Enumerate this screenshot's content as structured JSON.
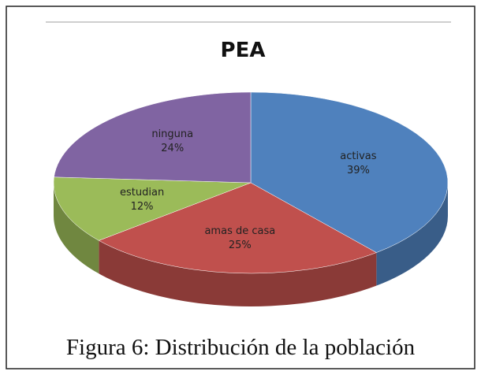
{
  "chart_data": {
    "type": "pie",
    "title": "PEA",
    "categories": [
      "activas",
      "amas de casa",
      "estudian",
      "ninguna"
    ],
    "values": [
      39,
      25,
      12,
      24
    ],
    "value_labels": [
      "39%",
      "25%",
      "12%",
      "24%"
    ],
    "colors": [
      "#4f81bd",
      "#c0504d",
      "#9bbb59",
      "#8064a2"
    ]
  },
  "caption": "Figura 6: Distribución de la población"
}
